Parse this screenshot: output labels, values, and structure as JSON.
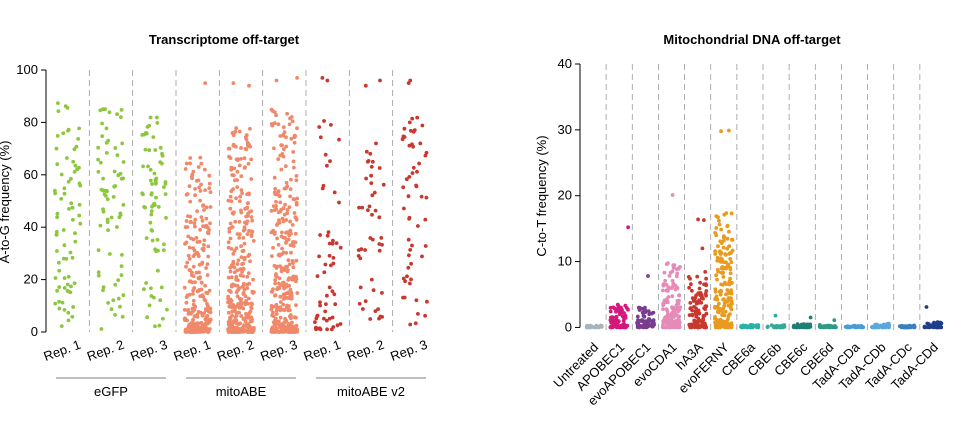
{
  "chart_data": [
    {
      "type": "scatter",
      "title": "Transcriptome off-target",
      "ylabel": "A-to-G frequency (%)",
      "ylim": [
        0,
        100
      ],
      "yticks": [
        0,
        20,
        40,
        60,
        80,
        100
      ],
      "categories": [
        "Rep. 1",
        "Rep. 2",
        "Rep. 3",
        "Rep. 1",
        "Rep. 2",
        "Rep. 3",
        "Rep. 1",
        "Rep. 2",
        "Rep. 3"
      ],
      "groups": [
        {
          "name": "eGFP",
          "color": "#8DC63F",
          "members": [
            0,
            1,
            2
          ]
        },
        {
          "name": "mitoABE",
          "color": "#F0896A",
          "members": [
            3,
            4,
            5
          ]
        },
        {
          "name": "mitoABE v2",
          "color": "#C8382E",
          "members": [
            6,
            7,
            8
          ]
        }
      ],
      "series": [
        {
          "name": "eGFP Rep. 1",
          "n_points": 75,
          "min": 1,
          "max": 89,
          "dist": "uniform",
          "outliers": []
        },
        {
          "name": "eGFP Rep. 2",
          "n_points": 70,
          "min": 1,
          "max": 90,
          "dist": "uniform",
          "outliers": []
        },
        {
          "name": "eGFP Rep. 3",
          "n_points": 72,
          "min": 2,
          "max": 83,
          "dist": "uniform",
          "outliers": []
        },
        {
          "name": "mitoABE Rep. 1",
          "n_points": 260,
          "min": 0,
          "max": 69,
          "dist": "skewed",
          "outliers": [
            95
          ]
        },
        {
          "name": "mitoABE Rep. 2",
          "n_points": 340,
          "min": 0,
          "max": 78,
          "dist": "skewed",
          "outliers": [
            94,
            95
          ]
        },
        {
          "name": "mitoABE Rep. 3",
          "n_points": 330,
          "min": 0,
          "max": 85,
          "dist": "skewed",
          "outliers": [
            96,
            97
          ]
        },
        {
          "name": "mitoABE v2 Rep. 1",
          "n_points": 55,
          "min": 1,
          "max": 81,
          "dist": "skewed",
          "outliers": [
            96,
            97
          ]
        },
        {
          "name": "mitoABE v2 Rep. 2",
          "n_points": 45,
          "min": 2,
          "max": 73,
          "dist": "uniform",
          "outliers": [
            94,
            96
          ]
        },
        {
          "name": "mitoABE v2 Rep. 3",
          "n_points": 55,
          "min": 1,
          "max": 83,
          "dist": "uniform",
          "outliers": [
            95,
            96
          ]
        }
      ]
    },
    {
      "type": "scatter",
      "title": "Mitochondrial DNA off-target",
      "ylabel": "C-to-T frequency (%)",
      "ylim": [
        -1,
        40
      ],
      "yticks": [
        0,
        10,
        20,
        30,
        40
      ],
      "categories": [
        "Untreated",
        "APOBEC1",
        "evoAPOBEC1",
        "evoCDA1",
        "hA3A",
        "evoFERNY",
        "CBE6a",
        "CBE6b",
        "CBE6c",
        "CBE6d",
        "TadA-CDa",
        "TadA-CDb",
        "TadA-CDc",
        "TadA-CDd"
      ],
      "series": [
        {
          "name": "Untreated",
          "color": "#A9B3BE",
          "n_points": 40,
          "min": 0,
          "max": 0.3,
          "outliers": []
        },
        {
          "name": "APOBEC1",
          "color": "#D6177B",
          "n_points": 80,
          "min": 0,
          "max": 3.5,
          "outliers": [
            15.2
          ]
        },
        {
          "name": "evoAPOBEC1",
          "color": "#7A3C8E",
          "n_points": 70,
          "min": 0,
          "max": 3.2,
          "outliers": [
            7.8
          ]
        },
        {
          "name": "evoCDA1",
          "color": "#E58BB8",
          "n_points": 150,
          "min": 0,
          "max": 10,
          "outliers": [
            20.1
          ]
        },
        {
          "name": "hA3A",
          "color": "#C8382E",
          "n_points": 120,
          "min": 0,
          "max": 8.5,
          "outliers": [
            12,
            16.3,
            16.4
          ]
        },
        {
          "name": "evoFERNY",
          "color": "#E89B1F",
          "n_points": 200,
          "min": 0,
          "max": 17.5,
          "outliers": [
            29.8,
            29.9
          ]
        },
        {
          "name": "CBE6a",
          "color": "#2AB3A6",
          "n_points": 40,
          "min": 0,
          "max": 0.4,
          "outliers": []
        },
        {
          "name": "CBE6b",
          "color": "#35A99A",
          "n_points": 30,
          "min": 0,
          "max": 0.4,
          "outliers": [
            1.8
          ]
        },
        {
          "name": "CBE6c",
          "color": "#1E7F72",
          "n_points": 40,
          "min": 0,
          "max": 0.5,
          "outliers": [
            1.5
          ]
        },
        {
          "name": "CBE6d",
          "color": "#2D9A84",
          "n_points": 35,
          "min": 0,
          "max": 0.4,
          "outliers": [
            1.1
          ]
        },
        {
          "name": "TadA-CDa",
          "color": "#4A9BD6",
          "n_points": 40,
          "min": 0,
          "max": 0.3,
          "outliers": []
        },
        {
          "name": "TadA-CDb",
          "color": "#5AA8DC",
          "n_points": 40,
          "min": 0,
          "max": 0.6,
          "outliers": []
        },
        {
          "name": "TadA-CDc",
          "color": "#3A7EC0",
          "n_points": 40,
          "min": 0,
          "max": 0.3,
          "outliers": []
        },
        {
          "name": "TadA-CDd",
          "color": "#1F3E8A",
          "n_points": 40,
          "min": 0,
          "max": 0.8,
          "outliers": [
            3.1
          ]
        }
      ]
    }
  ]
}
